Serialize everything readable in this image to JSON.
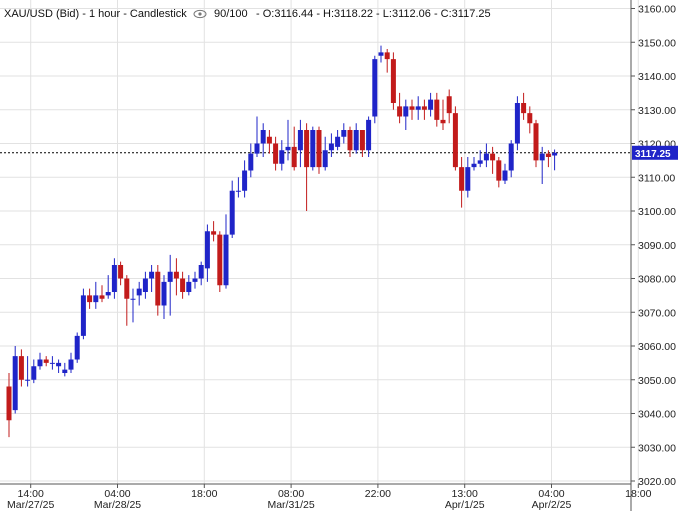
{
  "header": {
    "symbol": "XAU/USD (Bid) - 1 hour - Candlestick",
    "visibility": "90/100",
    "ohlc": "- O:3116.44 - H:3118.22 - L:3112.06 - C:3117.25"
  },
  "last_price_label": "3117.25",
  "colors": {
    "up": "#1f24c8",
    "down": "#c21b1b",
    "grid": "#e2e2e2",
    "last_line": "#000000",
    "label_bg": "#1f24c8"
  },
  "chart_data": {
    "type": "candlestick",
    "title": "XAU/USD (Bid) - 1 hour - Candlestick",
    "ylim": [
      3020,
      3160
    ],
    "y_ticks": [
      3020,
      3030,
      3040,
      3050,
      3060,
      3070,
      3080,
      3090,
      3100,
      3110,
      3120,
      3130,
      3140,
      3150,
      3160
    ],
    "y_tick_labels": [
      "3020.00",
      "3030.00",
      "3040.00",
      "3050.00",
      "3060.00",
      "3070.00",
      "3080.00",
      "3090.00",
      "3100.00",
      "3110.00",
      "3120.00",
      "3130.00",
      "3140.00",
      "3150.00",
      "3160.00"
    ],
    "x_ticks": [
      {
        "label": "14:00",
        "sub": "Mar/27/25",
        "bar": 3.5
      },
      {
        "label": "04:00",
        "sub": "Mar/28/25",
        "bar": 17.5
      },
      {
        "label": "18:00",
        "sub": "",
        "bar": 31.5
      },
      {
        "label": "08:00",
        "sub": "Mar/31/25",
        "bar": 45.5
      },
      {
        "label": "22:00",
        "sub": "",
        "bar": 59.5
      },
      {
        "label": "13:00",
        "sub": "Apr/1/25",
        "bar": 73.5
      },
      {
        "label": "04:00",
        "sub": "Apr/2/25",
        "bar": 87.5
      },
      {
        "label": "18:00",
        "sub": "",
        "bar": 101.5
      }
    ],
    "last_price": 3117.25,
    "candles": [
      [
        3048,
        3038,
        3052,
        3033
      ],
      [
        3041,
        3057,
        3060,
        3040
      ],
      [
        3057,
        3050,
        3059,
        3048
      ],
      [
        3050,
        3050,
        3057,
        3048
      ],
      [
        3050,
        3054,
        3056,
        3049
      ],
      [
        3054,
        3056,
        3058,
        3053
      ],
      [
        3056,
        3055,
        3057,
        3054
      ],
      [
        3055,
        3055,
        3057,
        3053
      ],
      [
        3054,
        3055,
        3056,
        3052
      ],
      [
        3052,
        3053,
        3055,
        3051
      ],
      [
        3053,
        3056,
        3058,
        3052
      ],
      [
        3056,
        3063,
        3064,
        3055
      ],
      [
        3063,
        3075,
        3077,
        3062
      ],
      [
        3075,
        3073,
        3077,
        3071
      ],
      [
        3073,
        3075,
        3079,
        3071
      ],
      [
        3075,
        3074,
        3078,
        3073
      ],
      [
        3075,
        3076,
        3081,
        3074
      ],
      [
        3076,
        3084,
        3086,
        3074
      ],
      [
        3084,
        3080,
        3085,
        3078
      ],
      [
        3080,
        3074,
        3081,
        3066
      ],
      [
        3074,
        3074,
        3077,
        3067
      ],
      [
        3075,
        3077,
        3079,
        3072
      ],
      [
        3076,
        3080,
        3082,
        3074
      ],
      [
        3080,
        3082,
        3084,
        3076
      ],
      [
        3082,
        3072,
        3084,
        3069
      ],
      [
        3072,
        3079,
        3081,
        3068
      ],
      [
        3079,
        3082,
        3087,
        3069
      ],
      [
        3082,
        3080,
        3086,
        3075
      ],
      [
        3080,
        3076,
        3082,
        3074
      ],
      [
        3076,
        3079,
        3081,
        3075
      ],
      [
        3079,
        3080,
        3082,
        3077
      ],
      [
        3080,
        3084,
        3085,
        3078
      ],
      [
        3083,
        3094,
        3096,
        3079
      ],
      [
        3094,
        3093,
        3097,
        3091
      ],
      [
        3093,
        3078,
        3094,
        3076
      ],
      [
        3078,
        3093,
        3099,
        3077
      ],
      [
        3093,
        3106,
        3109,
        3092
      ],
      [
        3106,
        3106,
        3110,
        3104
      ],
      [
        3106,
        3112,
        3115,
        3104
      ],
      [
        3112,
        3117,
        3120,
        3110
      ],
      [
        3117,
        3120,
        3128,
        3116
      ],
      [
        3120,
        3124,
        3126,
        3116
      ],
      [
        3122,
        3120,
        3124,
        3117
      ],
      [
        3120,
        3114,
        3122,
        3112
      ],
      [
        3114,
        3118,
        3121,
        3112
      ],
      [
        3118,
        3119,
        3127,
        3115
      ],
      [
        3119,
        3113,
        3125,
        3112
      ],
      [
        3118,
        3124,
        3127,
        3113
      ],
      [
        3124,
        3113,
        3126,
        3100
      ],
      [
        3113,
        3124,
        3125,
        3112
      ],
      [
        3124,
        3113,
        3125,
        3111
      ],
      [
        3113,
        3118,
        3122,
        3112
      ],
      [
        3118,
        3120,
        3123,
        3116
      ],
      [
        3119,
        3122,
        3124,
        3118
      ],
      [
        3122,
        3124,
        3126,
        3120
      ],
      [
        3124,
        3118,
        3125,
        3116
      ],
      [
        3118,
        3124,
        3126,
        3117
      ],
      [
        3124,
        3118,
        3124,
        3116
      ],
      [
        3118,
        3127,
        3128,
        3116
      ],
      [
        3128,
        3145,
        3146,
        3126
      ],
      [
        3146,
        3147,
        3149,
        3144
      ],
      [
        3147,
        3145,
        3148,
        3141
      ],
      [
        3145,
        3132,
        3147,
        3130
      ],
      [
        3131,
        3128,
        3135,
        3126
      ],
      [
        3128,
        3131,
        3133,
        3124
      ],
      [
        3131,
        3130,
        3133,
        3127
      ],
      [
        3130,
        3131,
        3134,
        3127
      ],
      [
        3131,
        3130,
        3133,
        3127
      ],
      [
        3130,
        3133,
        3135,
        3128
      ],
      [
        3133,
        3127,
        3135,
        3125
      ],
      [
        3127,
        3126,
        3133,
        3124
      ],
      [
        3134,
        3129,
        3136,
        3126
      ],
      [
        3129,
        3113,
        3131,
        3112
      ],
      [
        3113,
        3106,
        3116,
        3101
      ],
      [
        3106,
        3113,
        3116,
        3104
      ],
      [
        3113,
        3114,
        3116,
        3112
      ],
      [
        3114,
        3115,
        3118,
        3113
      ],
      [
        3115,
        3117,
        3120,
        3113
      ],
      [
        3117,
        3115,
        3119,
        3111
      ],
      [
        3115,
        3109,
        3116,
        3107
      ],
      [
        3109,
        3112,
        3114,
        3108
      ],
      [
        3112,
        3120,
        3121,
        3110
      ],
      [
        3120,
        3132,
        3134,
        3118
      ],
      [
        3132,
        3129,
        3135,
        3127
      ],
      [
        3129,
        3126,
        3131,
        3123
      ],
      [
        3126,
        3115,
        3127,
        3113
      ],
      [
        3115,
        3117,
        3119,
        3108
      ],
      [
        3117,
        3116,
        3118,
        3113
      ],
      [
        3116.44,
        3117.25,
        3118.22,
        3112.06
      ]
    ]
  }
}
